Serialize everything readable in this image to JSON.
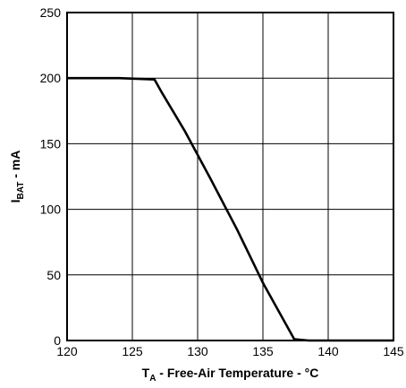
{
  "chart_data": {
    "type": "line",
    "xlabel": {
      "main": "T",
      "sub": "A",
      "rest": " - Free-Air Temperature - °C"
    },
    "ylabel": {
      "main": "I",
      "sub": "BAT",
      "rest": " - mA"
    },
    "xlim": [
      120,
      145
    ],
    "ylim": [
      0,
      250
    ],
    "x_ticks": [
      120,
      125,
      130,
      135,
      140,
      145
    ],
    "y_ticks": [
      0,
      50,
      100,
      150,
      200,
      250
    ],
    "grid": true,
    "series": [
      {
        "points": [
          [
            120,
            200
          ],
          [
            124,
            200
          ],
          [
            126.7,
            199
          ],
          [
            127.2,
            190
          ],
          [
            129,
            160
          ],
          [
            131,
            123
          ],
          [
            133,
            85
          ],
          [
            135,
            44
          ],
          [
            137.4,
            1
          ],
          [
            138.5,
            0
          ],
          [
            145,
            0
          ]
        ]
      }
    ]
  }
}
